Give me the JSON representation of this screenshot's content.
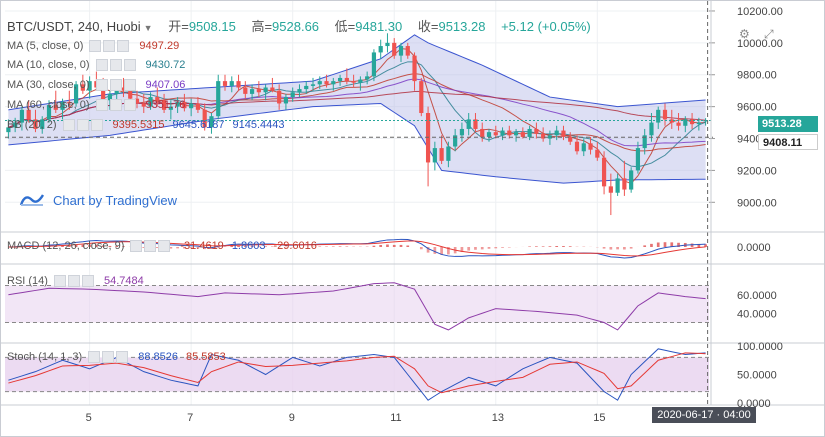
{
  "header": {
    "symbol": "BTC/USDT, 240, Huobi",
    "open_label": "开=",
    "open": "9508.15",
    "high_label": "高=",
    "high": "9528.66",
    "low_label": "低=",
    "low": "9481.30",
    "close_label": "收=",
    "close": "9513.28",
    "change": "+5.12 (+0.05%)"
  },
  "legends": {
    "ma5": {
      "label": "MA (5, close, 0)",
      "value": "9497.29",
      "color": "#c0392b"
    },
    "ma10": {
      "label": "MA (10, close, 0)",
      "value": "9430.72",
      "color": "#2a7f8f"
    },
    "ma30": {
      "label": "MA (30, close, 0)",
      "value": "9407.06",
      "color": "#7a3cc4"
    },
    "ma60": {
      "label": "MA (60, close, 0)",
      "value": "9351.76",
      "color": "#b03040"
    },
    "bb": {
      "label": "BB (20, 2)",
      "v1": "9395.5315",
      "v2": "9645.6187",
      "v3": "9145.4443",
      "c1": "#c0392b",
      "c2": "#2b55c0",
      "c3": "#2b55c0"
    },
    "macd": {
      "label": "MACD (12, 26, close, 9)",
      "v1": "-31.4619",
      "v2": "1.8603",
      "v3": "-29.6016",
      "c1": "#c0392b",
      "c2": "#2b55c0",
      "c3": "#c0392b"
    },
    "rsi": {
      "label": "RSI (14)",
      "value": "54.7484",
      "color": "#8e3ca8"
    },
    "stoch": {
      "label": "Stoch (14, 1, 3)",
      "v1": "88.8526",
      "v2": "85.5853",
      "c1": "#2b55c0",
      "c2": "#c0392b"
    }
  },
  "branding": {
    "text": "Chart by TradingView"
  },
  "colors": {
    "up": "#26a69a",
    "down": "#ef5350",
    "bb_fill": "#b4b9e6",
    "grid": "#eef0f3",
    "osc_fill": "#e7d2ef"
  },
  "last_price_tag": "9513.28",
  "crosshair_price_tag": "9408.11",
  "time_tag": "2020-06-17 · 04:00",
  "chart_data": {
    "type": "candlestick",
    "timeframe": "240",
    "price_axis": {
      "ticks": [
        "10200.00",
        "10000.00",
        "9800.00",
        "9600.00",
        "9400.00",
        "9200.00",
        "9000.00"
      ],
      "ylim": [
        8820,
        10250
      ]
    },
    "x_axis": {
      "ticks": [
        "5",
        "7",
        "9",
        "11",
        "13",
        "15"
      ],
      "tick_bar_index": [
        12,
        27,
        42,
        57,
        72,
        87
      ],
      "bars": 104
    },
    "candles": [
      {
        "o": 9440,
        "h": 9520,
        "l": 9400,
        "c": 9470
      },
      {
        "o": 9470,
        "h": 9530,
        "l": 9440,
        "c": 9500
      },
      {
        "o": 9500,
        "h": 9600,
        "l": 9450,
        "c": 9580
      },
      {
        "o": 9580,
        "h": 9640,
        "l": 9500,
        "c": 9520
      },
      {
        "o": 9520,
        "h": 9580,
        "l": 9440,
        "c": 9460
      },
      {
        "o": 9460,
        "h": 9540,
        "l": 9430,
        "c": 9520
      },
      {
        "o": 9520,
        "h": 9640,
        "l": 9500,
        "c": 9610
      },
      {
        "o": 9610,
        "h": 9700,
        "l": 9560,
        "c": 9580
      },
      {
        "o": 9580,
        "h": 9650,
        "l": 9520,
        "c": 9630
      },
      {
        "o": 9630,
        "h": 9700,
        "l": 9580,
        "c": 9620
      },
      {
        "o": 9620,
        "h": 9760,
        "l": 9600,
        "c": 9740
      },
      {
        "o": 9740,
        "h": 9800,
        "l": 9680,
        "c": 9700
      },
      {
        "o": 9700,
        "h": 9790,
        "l": 9650,
        "c": 9760
      },
      {
        "o": 9760,
        "h": 9820,
        "l": 9700,
        "c": 9720
      },
      {
        "o": 9720,
        "h": 9780,
        "l": 9600,
        "c": 9640
      },
      {
        "o": 9640,
        "h": 9700,
        "l": 9580,
        "c": 9680
      },
      {
        "o": 9680,
        "h": 9760,
        "l": 9640,
        "c": 9720
      },
      {
        "o": 9720,
        "h": 9780,
        "l": 9660,
        "c": 9700
      },
      {
        "o": 9700,
        "h": 9740,
        "l": 9620,
        "c": 9650
      },
      {
        "o": 9650,
        "h": 9700,
        "l": 9590,
        "c": 9620
      },
      {
        "o": 9620,
        "h": 9680,
        "l": 9560,
        "c": 9600
      },
      {
        "o": 9600,
        "h": 9690,
        "l": 9580,
        "c": 9660
      },
      {
        "o": 9660,
        "h": 9720,
        "l": 9600,
        "c": 9640
      },
      {
        "o": 9640,
        "h": 9680,
        "l": 9560,
        "c": 9580
      },
      {
        "o": 9580,
        "h": 9640,
        "l": 9520,
        "c": 9600
      },
      {
        "o": 9600,
        "h": 9660,
        "l": 9560,
        "c": 9630
      },
      {
        "o": 9630,
        "h": 9680,
        "l": 9570,
        "c": 9590
      },
      {
        "o": 9590,
        "h": 9650,
        "l": 9540,
        "c": 9620
      },
      {
        "o": 9620,
        "h": 9660,
        "l": 9560,
        "c": 9580
      },
      {
        "o": 9580,
        "h": 9620,
        "l": 9450,
        "c": 9470
      },
      {
        "o": 9470,
        "h": 9560,
        "l": 9430,
        "c": 9540
      },
      {
        "o": 9540,
        "h": 9800,
        "l": 9520,
        "c": 9760
      },
      {
        "o": 9760,
        "h": 9800,
        "l": 9700,
        "c": 9730
      },
      {
        "o": 9730,
        "h": 9790,
        "l": 9690,
        "c": 9760
      },
      {
        "o": 9760,
        "h": 9800,
        "l": 9700,
        "c": 9720
      },
      {
        "o": 9720,
        "h": 9760,
        "l": 9650,
        "c": 9680
      },
      {
        "o": 9680,
        "h": 9740,
        "l": 9640,
        "c": 9710
      },
      {
        "o": 9710,
        "h": 9760,
        "l": 9660,
        "c": 9690
      },
      {
        "o": 9690,
        "h": 9740,
        "l": 9640,
        "c": 9720
      },
      {
        "o": 9720,
        "h": 9780,
        "l": 9690,
        "c": 9700
      },
      {
        "o": 9700,
        "h": 9740,
        "l": 9580,
        "c": 9620
      },
      {
        "o": 9620,
        "h": 9680,
        "l": 9580,
        "c": 9660
      },
      {
        "o": 9660,
        "h": 9720,
        "l": 9630,
        "c": 9690
      },
      {
        "o": 9690,
        "h": 9740,
        "l": 9660,
        "c": 9710
      },
      {
        "o": 9710,
        "h": 9760,
        "l": 9680,
        "c": 9730
      },
      {
        "o": 9730,
        "h": 9780,
        "l": 9700,
        "c": 9740
      },
      {
        "o": 9740,
        "h": 9790,
        "l": 9710,
        "c": 9760
      },
      {
        "o": 9760,
        "h": 9800,
        "l": 9720,
        "c": 9740
      },
      {
        "o": 9740,
        "h": 9780,
        "l": 9700,
        "c": 9760
      },
      {
        "o": 9760,
        "h": 9800,
        "l": 9730,
        "c": 9780
      },
      {
        "o": 9780,
        "h": 9840,
        "l": 9740,
        "c": 9760
      },
      {
        "o": 9760,
        "h": 9800,
        "l": 9720,
        "c": 9750
      },
      {
        "o": 9750,
        "h": 9790,
        "l": 9700,
        "c": 9770
      },
      {
        "o": 9770,
        "h": 9820,
        "l": 9740,
        "c": 9790
      },
      {
        "o": 9790,
        "h": 9960,
        "l": 9760,
        "c": 9940
      },
      {
        "o": 9940,
        "h": 10020,
        "l": 9900,
        "c": 9980
      },
      {
        "o": 9980,
        "h": 10060,
        "l": 9940,
        "c": 10000
      },
      {
        "o": 10000,
        "h": 10030,
        "l": 9900,
        "c": 9920
      },
      {
        "o": 9920,
        "h": 10000,
        "l": 9880,
        "c": 9980
      },
      {
        "o": 9980,
        "h": 10000,
        "l": 9900,
        "c": 9920
      },
      {
        "o": 9920,
        "h": 9940,
        "l": 9700,
        "c": 9760
      },
      {
        "o": 9760,
        "h": 9780,
        "l": 9540,
        "c": 9560
      },
      {
        "o": 9560,
        "h": 9600,
        "l": 9100,
        "c": 9250
      },
      {
        "o": 9250,
        "h": 9380,
        "l": 9200,
        "c": 9340
      },
      {
        "o": 9340,
        "h": 9420,
        "l": 9240,
        "c": 9260
      },
      {
        "o": 9260,
        "h": 9380,
        "l": 9220,
        "c": 9350
      },
      {
        "o": 9350,
        "h": 9460,
        "l": 9320,
        "c": 9420
      },
      {
        "o": 9420,
        "h": 9500,
        "l": 9380,
        "c": 9460
      },
      {
        "o": 9460,
        "h": 9560,
        "l": 9420,
        "c": 9520
      },
      {
        "o": 9520,
        "h": 9560,
        "l": 9440,
        "c": 9460
      },
      {
        "o": 9460,
        "h": 9500,
        "l": 9380,
        "c": 9410
      },
      {
        "o": 9410,
        "h": 9460,
        "l": 9380,
        "c": 9440
      },
      {
        "o": 9440,
        "h": 9480,
        "l": 9400,
        "c": 9420
      },
      {
        "o": 9420,
        "h": 9470,
        "l": 9390,
        "c": 9450
      },
      {
        "o": 9450,
        "h": 9480,
        "l": 9400,
        "c": 9420
      },
      {
        "o": 9420,
        "h": 9460,
        "l": 9380,
        "c": 9440
      },
      {
        "o": 9440,
        "h": 9470,
        "l": 9400,
        "c": 9410
      },
      {
        "o": 9410,
        "h": 9480,
        "l": 9390,
        "c": 9460
      },
      {
        "o": 9460,
        "h": 9500,
        "l": 9400,
        "c": 9430
      },
      {
        "o": 9430,
        "h": 9470,
        "l": 9380,
        "c": 9400
      },
      {
        "o": 9400,
        "h": 9450,
        "l": 9360,
        "c": 9420
      },
      {
        "o": 9420,
        "h": 9480,
        "l": 9390,
        "c": 9450
      },
      {
        "o": 9450,
        "h": 9480,
        "l": 9390,
        "c": 9410
      },
      {
        "o": 9410,
        "h": 9440,
        "l": 9360,
        "c": 9380
      },
      {
        "o": 9380,
        "h": 9420,
        "l": 9300,
        "c": 9320
      },
      {
        "o": 9320,
        "h": 9400,
        "l": 9290,
        "c": 9370
      },
      {
        "o": 9370,
        "h": 9410,
        "l": 9300,
        "c": 9330
      },
      {
        "o": 9330,
        "h": 9380,
        "l": 9260,
        "c": 9280
      },
      {
        "o": 9280,
        "h": 9320,
        "l": 9050,
        "c": 9100
      },
      {
        "o": 9100,
        "h": 9180,
        "l": 8920,
        "c": 9060
      },
      {
        "o": 9060,
        "h": 9180,
        "l": 9040,
        "c": 9150
      },
      {
        "o": 9150,
        "h": 9260,
        "l": 9040,
        "c": 9080
      },
      {
        "o": 9080,
        "h": 9220,
        "l": 9060,
        "c": 9200
      },
      {
        "o": 9200,
        "h": 9380,
        "l": 9180,
        "c": 9340
      },
      {
        "o": 9340,
        "h": 9460,
        "l": 9300,
        "c": 9420
      },
      {
        "o": 9420,
        "h": 9560,
        "l": 9380,
        "c": 9500
      },
      {
        "o": 9500,
        "h": 9600,
        "l": 9460,
        "c": 9580
      },
      {
        "o": 9580,
        "h": 9620,
        "l": 9480,
        "c": 9520
      },
      {
        "o": 9520,
        "h": 9580,
        "l": 9460,
        "c": 9500
      },
      {
        "o": 9500,
        "h": 9560,
        "l": 9450,
        "c": 9480
      },
      {
        "o": 9480,
        "h": 9540,
        "l": 9440,
        "c": 9520
      },
      {
        "o": 9520,
        "h": 9560,
        "l": 9460,
        "c": 9490
      },
      {
        "o": 9490,
        "h": 9530,
        "l": 9450,
        "c": 9500
      },
      {
        "o": 9508,
        "h": 9528,
        "l": 9481,
        "c": 9513
      }
    ],
    "bollinger": {
      "upper_anchor": [
        [
          0,
          9580
        ],
        [
          15,
          9680
        ],
        [
          30,
          9720
        ],
        [
          45,
          9760
        ],
        [
          55,
          9900
        ],
        [
          60,
          10050
        ],
        [
          62,
          10000
        ],
        [
          70,
          9860
        ],
        [
          80,
          9660
        ],
        [
          90,
          9600
        ],
        [
          104,
          9645
        ]
      ],
      "lower_anchor": [
        [
          0,
          9360
        ],
        [
          15,
          9420
        ],
        [
          30,
          9520
        ],
        [
          45,
          9600
        ],
        [
          55,
          9620
        ],
        [
          60,
          9480
        ],
        [
          64,
          9200
        ],
        [
          72,
          9160
        ],
        [
          82,
          9120
        ],
        [
          90,
          9140
        ],
        [
          104,
          9145
        ]
      ]
    },
    "macd_ticks": [
      "0.0000"
    ],
    "rsi": {
      "ticks": [
        "60.0000",
        "40.0000"
      ],
      "ylim": [
        10,
        90
      ],
      "band": [
        30,
        70
      ],
      "anchor": [
        [
          0,
          60
        ],
        [
          6,
          67
        ],
        [
          12,
          66
        ],
        [
          20,
          63
        ],
        [
          28,
          58
        ],
        [
          32,
          62
        ],
        [
          40,
          60
        ],
        [
          48,
          64
        ],
        [
          54,
          72
        ],
        [
          57,
          73
        ],
        [
          60,
          66
        ],
        [
          63,
          28
        ],
        [
          65,
          22
        ],
        [
          68,
          35
        ],
        [
          72,
          45
        ],
        [
          78,
          42
        ],
        [
          84,
          38
        ],
        [
          88,
          30
        ],
        [
          90,
          22
        ],
        [
          93,
          48
        ],
        [
          96,
          62
        ],
        [
          100,
          58
        ],
        [
          104,
          55
        ]
      ]
    },
    "stoch": {
      "ticks": [
        "100.0000",
        "50.0000",
        "0.0000"
      ],
      "ylim": [
        0,
        100
      ],
      "band": [
        20,
        80
      ],
      "k_anchor": [
        [
          0,
          40
        ],
        [
          4,
          55
        ],
        [
          8,
          75
        ],
        [
          12,
          60
        ],
        [
          16,
          80
        ],
        [
          20,
          55
        ],
        [
          24,
          40
        ],
        [
          28,
          30
        ],
        [
          30,
          85
        ],
        [
          34,
          75
        ],
        [
          38,
          50
        ],
        [
          42,
          80
        ],
        [
          46,
          65
        ],
        [
          50,
          80
        ],
        [
          54,
          85
        ],
        [
          57,
          80
        ],
        [
          60,
          35
        ],
        [
          62,
          5
        ],
        [
          64,
          20
        ],
        [
          68,
          45
        ],
        [
          72,
          30
        ],
        [
          76,
          60
        ],
        [
          80,
          80
        ],
        [
          84,
          70
        ],
        [
          88,
          20
        ],
        [
          90,
          5
        ],
        [
          92,
          50
        ],
        [
          96,
          95
        ],
        [
          100,
          85
        ],
        [
          104,
          89
        ]
      ],
      "d_anchor": [
        [
          0,
          35
        ],
        [
          4,
          48
        ],
        [
          8,
          65
        ],
        [
          12,
          66
        ],
        [
          16,
          70
        ],
        [
          20,
          62
        ],
        [
          24,
          48
        ],
        [
          28,
          36
        ],
        [
          30,
          55
        ],
        [
          34,
          72
        ],
        [
          38,
          64
        ],
        [
          42,
          66
        ],
        [
          46,
          70
        ],
        [
          50,
          74
        ],
        [
          54,
          80
        ],
        [
          57,
          82
        ],
        [
          60,
          60
        ],
        [
          62,
          30
        ],
        [
          64,
          18
        ],
        [
          68,
          30
        ],
        [
          72,
          38
        ],
        [
          76,
          45
        ],
        [
          80,
          68
        ],
        [
          84,
          72
        ],
        [
          88,
          52
        ],
        [
          90,
          25
        ],
        [
          92,
          30
        ],
        [
          96,
          75
        ],
        [
          100,
          88
        ],
        [
          104,
          86
        ]
      ]
    }
  }
}
